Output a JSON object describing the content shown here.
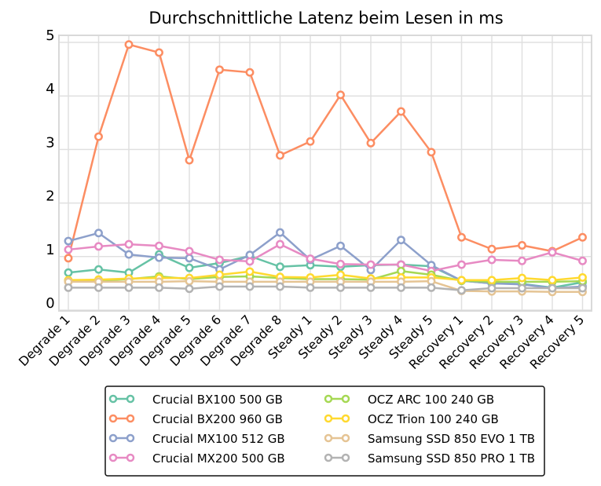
{
  "chart_data": {
    "type": "line",
    "title": "Durchschnittliche Latenz beim Lesen in ms",
    "xlabel": "",
    "ylabel": "",
    "ylim": [
      0,
      5
    ],
    "yticks": [
      0,
      1,
      2,
      3,
      4,
      5
    ],
    "ytick_labels": [
      "0",
      "1",
      "2",
      "3",
      "4",
      "5"
    ],
    "grid": true,
    "legend_position": "bottom",
    "categories": [
      "Degrade 1",
      "Degrade 2",
      "Degrade 3",
      "Degrade 4",
      "Degrade 5",
      "Degrade 6",
      "Degrade 7",
      "Degrade 8",
      "Steady 1",
      "Steady 2",
      "Steady 3",
      "Steady 4",
      "Steady 5",
      "Recovery 1",
      "Recovery 2",
      "Recovery 3",
      "Recovery 4",
      "Recovery 5"
    ],
    "series": [
      {
        "name": "Crucial BX100 500 GB",
        "color": "#66c2a5",
        "values": [
          0.7,
          0.76,
          0.7,
          1.04,
          0.79,
          0.88,
          1.01,
          0.81,
          0.84,
          0.81,
          0.84,
          0.85,
          0.82,
          0.55,
          0.5,
          0.49,
          0.42,
          0.52
        ]
      },
      {
        "name": "Crucial BX200 960 GB",
        "color": "#fc8d62",
        "values": [
          0.97,
          3.24,
          4.96,
          4.81,
          2.8,
          4.49,
          4.44,
          2.89,
          3.15,
          4.02,
          3.12,
          3.71,
          2.95,
          1.36,
          1.14,
          1.21,
          1.1,
          1.36
        ]
      },
      {
        "name": "Crucial MX100 512 GB",
        "color": "#8da0cb",
        "values": [
          1.29,
          1.44,
          1.04,
          0.98,
          0.97,
          0.76,
          1.03,
          1.45,
          0.94,
          1.2,
          0.75,
          1.31,
          0.84,
          0.55,
          0.5,
          0.48,
          0.41,
          0.44
        ]
      },
      {
        "name": "Crucial MX200 500 GB",
        "color": "#e78ac3",
        "values": [
          1.13,
          1.19,
          1.23,
          1.2,
          1.1,
          0.94,
          0.91,
          1.23,
          0.96,
          0.86,
          0.85,
          0.85,
          0.73,
          0.85,
          0.94,
          0.92,
          1.08,
          0.92
        ]
      },
      {
        "name": "OCZ ARC 100 240 GB",
        "color": "#a6d854",
        "values": [
          0.55,
          0.55,
          0.58,
          0.63,
          0.58,
          0.62,
          0.63,
          0.6,
          0.58,
          0.58,
          0.57,
          0.73,
          0.66,
          0.55,
          0.53,
          0.53,
          0.53,
          0.54
        ]
      },
      {
        "name": "OCZ Trion 100 240 GB",
        "color": "#ffd92f",
        "values": [
          0.56,
          0.57,
          0.59,
          0.6,
          0.6,
          0.66,
          0.72,
          0.62,
          0.61,
          0.66,
          0.59,
          0.61,
          0.61,
          0.56,
          0.56,
          0.6,
          0.56,
          0.61
        ]
      },
      {
        "name": "Samsung SSD 850 EVO 1 TB",
        "color": "#e5c494",
        "values": [
          0.53,
          0.53,
          0.53,
          0.53,
          0.54,
          0.53,
          0.53,
          0.53,
          0.53,
          0.53,
          0.53,
          0.53,
          0.54,
          0.36,
          0.35,
          0.35,
          0.34,
          0.34
        ]
      },
      {
        "name": "Samsung SSD 850 PRO 1 TB",
        "color": "#b3b3b3",
        "values": [
          0.42,
          0.42,
          0.42,
          0.42,
          0.4,
          0.44,
          0.44,
          0.44,
          0.42,
          0.42,
          0.42,
          0.42,
          0.42,
          0.37,
          0.41,
          0.41,
          0.41,
          0.41
        ]
      }
    ]
  }
}
